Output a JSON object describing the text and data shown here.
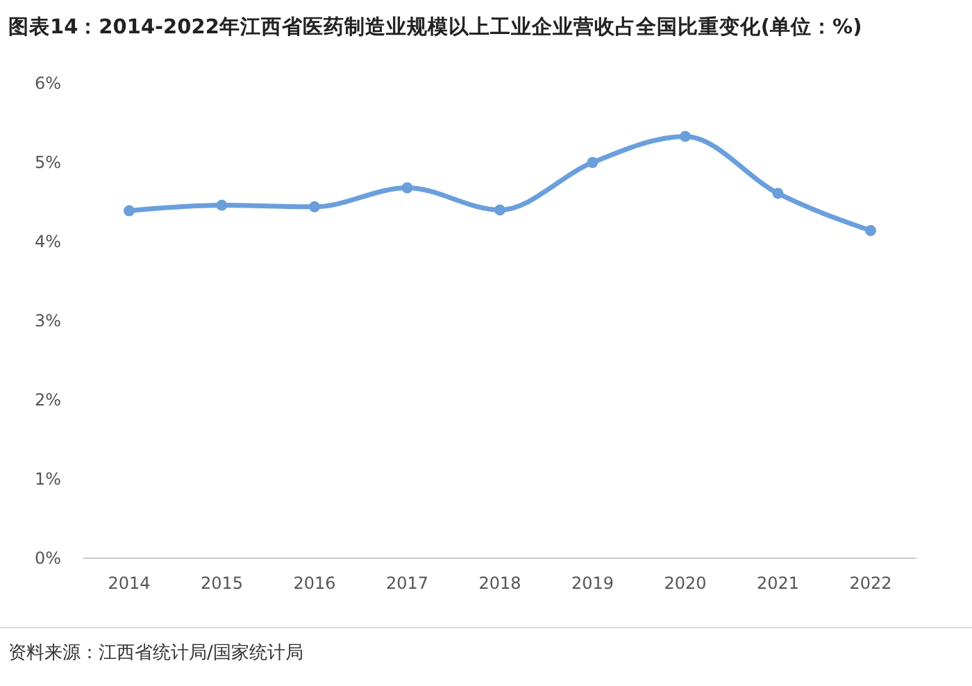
{
  "chart_data": {
    "type": "line",
    "title": "图表14：2014-2022年江西省医药制造业规模以上工业企业营收占全国比重变化(单位：%)",
    "categories": [
      "2014",
      "2015",
      "2016",
      "2017",
      "2018",
      "2019",
      "2020",
      "2021",
      "2022"
    ],
    "series": [
      {
        "color": "#6a9fdc",
        "values": [
          4.39,
          4.46,
          4.44,
          4.68,
          4.4,
          5.0,
          5.33,
          4.61,
          4.14
        ]
      }
    ],
    "ylim": [
      0,
      6
    ],
    "yticks": [
      {
        "value": 0,
        "label": "0%"
      },
      {
        "value": 1,
        "label": "1%"
      },
      {
        "value": 2,
        "label": "2%"
      },
      {
        "value": 3,
        "label": "3%"
      },
      {
        "value": 4,
        "label": "4%"
      },
      {
        "value": 5,
        "label": "5%"
      },
      {
        "value": 6,
        "label": "6%"
      }
    ],
    "grid": false,
    "marker": "circle",
    "line_style": "solid",
    "annotations": [
      "资料来源：江西省统计局/国家统计局"
    ]
  }
}
